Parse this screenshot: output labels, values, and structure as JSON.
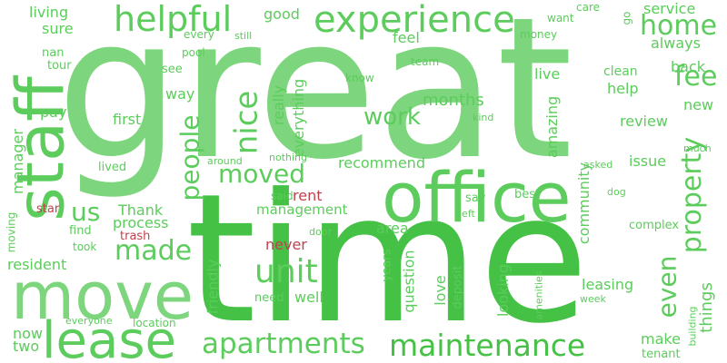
{
  "palette": {
    "green_light": "#7dd67d",
    "green_mid": "#5ccc5c",
    "green_dark": "#45c145",
    "red": "#c0424c"
  },
  "words": [
    {
      "text": "great",
      "tone": "green_light"
    },
    {
      "text": "time",
      "tone": "green_dark"
    },
    {
      "text": "staff",
      "tone": "green_mid"
    },
    {
      "text": "move",
      "tone": "green_light"
    },
    {
      "text": "office",
      "tone": "green_mid"
    },
    {
      "text": "lease",
      "tone": "green_mid"
    },
    {
      "text": "experience",
      "tone": "green_mid"
    },
    {
      "text": "helpful",
      "tone": "green_mid"
    },
    {
      "text": "maintenance",
      "tone": "green_dark"
    },
    {
      "text": "apartments",
      "tone": "green_mid"
    },
    {
      "text": "unit",
      "tone": "green_mid"
    },
    {
      "text": "home",
      "tone": "green_mid"
    },
    {
      "text": "fee",
      "tone": "green_mid"
    },
    {
      "text": "property",
      "tone": "green_mid"
    },
    {
      "text": "even",
      "tone": "green_mid"
    },
    {
      "text": "nice",
      "tone": "green_mid"
    },
    {
      "text": "moved",
      "tone": "green_mid"
    },
    {
      "text": "made",
      "tone": "green_mid"
    },
    {
      "text": "people",
      "tone": "green_mid"
    },
    {
      "text": "us",
      "tone": "green_mid"
    },
    {
      "text": "work",
      "tone": "green_mid"
    },
    {
      "text": "months",
      "tone": "green_mid"
    },
    {
      "text": "service",
      "tone": "green_mid"
    },
    {
      "text": "always",
      "tone": "green_mid"
    },
    {
      "text": "back",
      "tone": "green_mid"
    },
    {
      "text": "new",
      "tone": "green_mid"
    },
    {
      "text": "review",
      "tone": "green_mid"
    },
    {
      "text": "things",
      "tone": "green_mid"
    },
    {
      "text": "living",
      "tone": "green_mid"
    },
    {
      "text": "sure",
      "tone": "green_mid"
    },
    {
      "text": "good",
      "tone": "green_mid"
    },
    {
      "text": "feel",
      "tone": "green_mid"
    },
    {
      "text": "live",
      "tone": "green_mid"
    },
    {
      "text": "help",
      "tone": "green_mid"
    },
    {
      "text": "clean",
      "tone": "green_mid"
    },
    {
      "text": "first",
      "tone": "green_mid"
    },
    {
      "text": "way",
      "tone": "green_mid"
    },
    {
      "text": "pay",
      "tone": "green_mid"
    },
    {
      "text": "really",
      "tone": "green_mid"
    },
    {
      "text": "everything",
      "tone": "green_mid"
    },
    {
      "text": "amazing",
      "tone": "green_mid"
    },
    {
      "text": "community",
      "tone": "green_mid"
    },
    {
      "text": "issue",
      "tone": "green_mid"
    },
    {
      "text": "love",
      "tone": "green_mid"
    },
    {
      "text": "recommend",
      "tone": "green_mid"
    },
    {
      "text": "management",
      "tone": "green_mid"
    },
    {
      "text": "process",
      "tone": "green_mid"
    },
    {
      "text": "Thank",
      "tone": "green_mid"
    },
    {
      "text": "area",
      "tone": "green_mid"
    },
    {
      "text": "question",
      "tone": "green_mid"
    },
    {
      "text": "looking",
      "tone": "green_mid"
    },
    {
      "text": "leasing",
      "tone": "green_mid"
    },
    {
      "text": "make",
      "tone": "green_mid"
    },
    {
      "text": "well",
      "tone": "green_mid"
    },
    {
      "text": "friendly",
      "tone": "green_mid"
    },
    {
      "text": "resident",
      "tone": "green_mid"
    },
    {
      "text": "now",
      "tone": "green_mid"
    },
    {
      "text": "two",
      "tone": "green_mid"
    },
    {
      "text": "manager",
      "tone": "green_mid"
    },
    {
      "text": "lived",
      "tone": "green_mid"
    },
    {
      "text": "see",
      "tone": "green_mid"
    },
    {
      "text": "tour",
      "tone": "green_mid"
    },
    {
      "text": "nan",
      "tone": "green_mid"
    },
    {
      "text": "pool",
      "tone": "green_mid"
    },
    {
      "text": "every",
      "tone": "green_mid"
    },
    {
      "text": "still",
      "tone": "green_mid"
    },
    {
      "text": "know",
      "tone": "green_mid"
    },
    {
      "text": "team",
      "tone": "green_mid"
    },
    {
      "text": "want",
      "tone": "green_mid"
    },
    {
      "text": "care",
      "tone": "green_mid"
    },
    {
      "text": "money",
      "tone": "green_mid"
    },
    {
      "text": "go",
      "tone": "green_mid"
    },
    {
      "text": "kind",
      "tone": "green_mid"
    },
    {
      "text": "much",
      "tone": "green_mid"
    },
    {
      "text": "asked",
      "tone": "green_mid"
    },
    {
      "text": "dog",
      "tone": "green_mid"
    },
    {
      "text": "best",
      "tone": "green_mid"
    },
    {
      "text": "say",
      "tone": "green_mid"
    },
    {
      "text": "left",
      "tone": "green_mid"
    },
    {
      "text": "complex",
      "tone": "green_mid"
    },
    {
      "text": "said",
      "tone": "green_mid"
    },
    {
      "text": "rent",
      "tone": "red"
    },
    {
      "text": "never",
      "tone": "red"
    },
    {
      "text": "star",
      "tone": "red"
    },
    {
      "text": "trash",
      "tone": "red"
    },
    {
      "text": "find",
      "tone": "green_mid"
    },
    {
      "text": "took",
      "tone": "green_mid"
    },
    {
      "text": "moving",
      "tone": "green_mid"
    },
    {
      "text": "door",
      "tone": "green_mid"
    },
    {
      "text": "years",
      "tone": "green_mid"
    },
    {
      "text": "need",
      "tone": "green_mid"
    },
    {
      "text": "deposit",
      "tone": "green_mid"
    },
    {
      "text": "amenities",
      "tone": "green_mid"
    },
    {
      "text": "building",
      "tone": "green_mid"
    },
    {
      "text": "tenant",
      "tone": "green_mid"
    },
    {
      "text": "week",
      "tone": "green_mid"
    },
    {
      "text": "everyone",
      "tone": "green_mid"
    },
    {
      "text": "location",
      "tone": "green_mid"
    },
    {
      "text": "around",
      "tone": "green_mid"
    },
    {
      "text": "nothing",
      "tone": "green_mid"
    }
  ]
}
